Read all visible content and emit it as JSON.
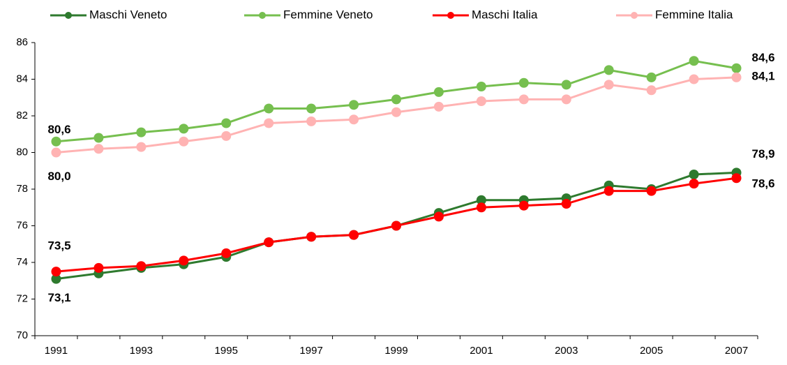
{
  "chart_data": {
    "type": "line",
    "categories": [
      "1991",
      null,
      "1993",
      null,
      "1995",
      null,
      "1997",
      null,
      "1999",
      null,
      "2001",
      null,
      "2003",
      null,
      "2005",
      null,
      "2007"
    ],
    "ylim": [
      70,
      86
    ],
    "yticks": [
      70,
      72,
      74,
      76,
      78,
      80,
      82,
      84,
      86
    ],
    "series": [
      {
        "name": "Maschi Veneto",
        "color": "#2e7a2e",
        "values": [
          73.1,
          73.4,
          73.7,
          73.9,
          74.3,
          75.1,
          75.4,
          75.5,
          76.0,
          76.7,
          77.4,
          77.4,
          77.5,
          78.2,
          78.0,
          78.8,
          78.9
        ],
        "value_labels": [
          "73,1",
          null,
          null,
          null,
          null,
          null,
          null,
          null,
          null,
          null,
          null,
          null,
          null,
          null,
          null,
          null,
          "78,9"
        ]
      },
      {
        "name": "Femmine Veneto",
        "color": "#76bf4f",
        "values": [
          80.6,
          80.8,
          81.1,
          81.3,
          81.6,
          82.4,
          82.4,
          82.6,
          82.9,
          83.3,
          83.6,
          83.8,
          83.7,
          84.5,
          84.1,
          85.0,
          84.6
        ],
        "value_labels": [
          "80,6",
          null,
          null,
          null,
          null,
          null,
          null,
          null,
          null,
          null,
          null,
          null,
          null,
          null,
          null,
          null,
          "84,6"
        ]
      },
      {
        "name": "Maschi Italia",
        "color": "#ff0000",
        "values": [
          73.5,
          73.7,
          73.8,
          74.1,
          74.5,
          75.1,
          75.4,
          75.5,
          76.0,
          76.5,
          77.0,
          77.1,
          77.2,
          77.9,
          77.9,
          78.3,
          78.6
        ],
        "value_labels": [
          "73,5",
          null,
          null,
          null,
          null,
          null,
          null,
          null,
          null,
          null,
          null,
          null,
          null,
          null,
          null,
          null,
          "78,6"
        ]
      },
      {
        "name": "Femmine Italia",
        "color": "#ffb3b3",
        "values": [
          80.0,
          80.2,
          80.3,
          80.6,
          80.9,
          81.6,
          81.7,
          81.8,
          82.2,
          82.5,
          82.8,
          82.9,
          82.9,
          83.7,
          83.4,
          84.0,
          84.1
        ],
        "value_labels": [
          "80,0",
          null,
          null,
          null,
          null,
          null,
          null,
          null,
          null,
          null,
          null,
          null,
          null,
          null,
          null,
          null,
          "84,1"
        ]
      }
    ]
  }
}
